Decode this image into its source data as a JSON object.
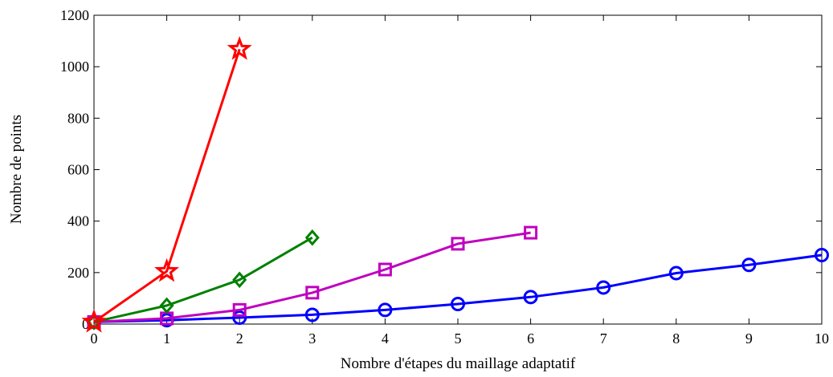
{
  "chart_data": {
    "type": "line",
    "title": "",
    "xlabel": "Nombre d'étapes du maillage adaptatif",
    "ylabel": "Nombre de points",
    "xlim": [
      0,
      10
    ],
    "ylim": [
      0,
      1200
    ],
    "xticks": [
      0,
      1,
      2,
      3,
      4,
      5,
      6,
      7,
      8,
      9,
      10
    ],
    "yticks": [
      0,
      200,
      400,
      600,
      800,
      1000,
      1200
    ],
    "grid": false,
    "legend": "none",
    "series": [
      {
        "color": "#0000ff",
        "marker": "circle",
        "x": [
          0,
          1,
          2,
          3,
          4,
          5,
          6,
          7,
          8,
          9,
          10
        ],
        "y": [
          8,
          15,
          25,
          36,
          55,
          78,
          105,
          142,
          198,
          230,
          268
        ]
      },
      {
        "color": "#bf00bf",
        "marker": "square",
        "x": [
          0,
          1,
          2,
          3,
          4,
          5,
          6
        ],
        "y": [
          8,
          22,
          55,
          122,
          212,
          312,
          355
        ]
      },
      {
        "color": "#008000",
        "marker": "diamond",
        "x": [
          0,
          1,
          2,
          3
        ],
        "y": [
          8,
          72,
          172,
          336
        ]
      },
      {
        "color": "#ff0000",
        "marker": "star",
        "x": [
          0,
          1,
          2
        ],
        "y": [
          8,
          205,
          1068
        ]
      }
    ]
  }
}
